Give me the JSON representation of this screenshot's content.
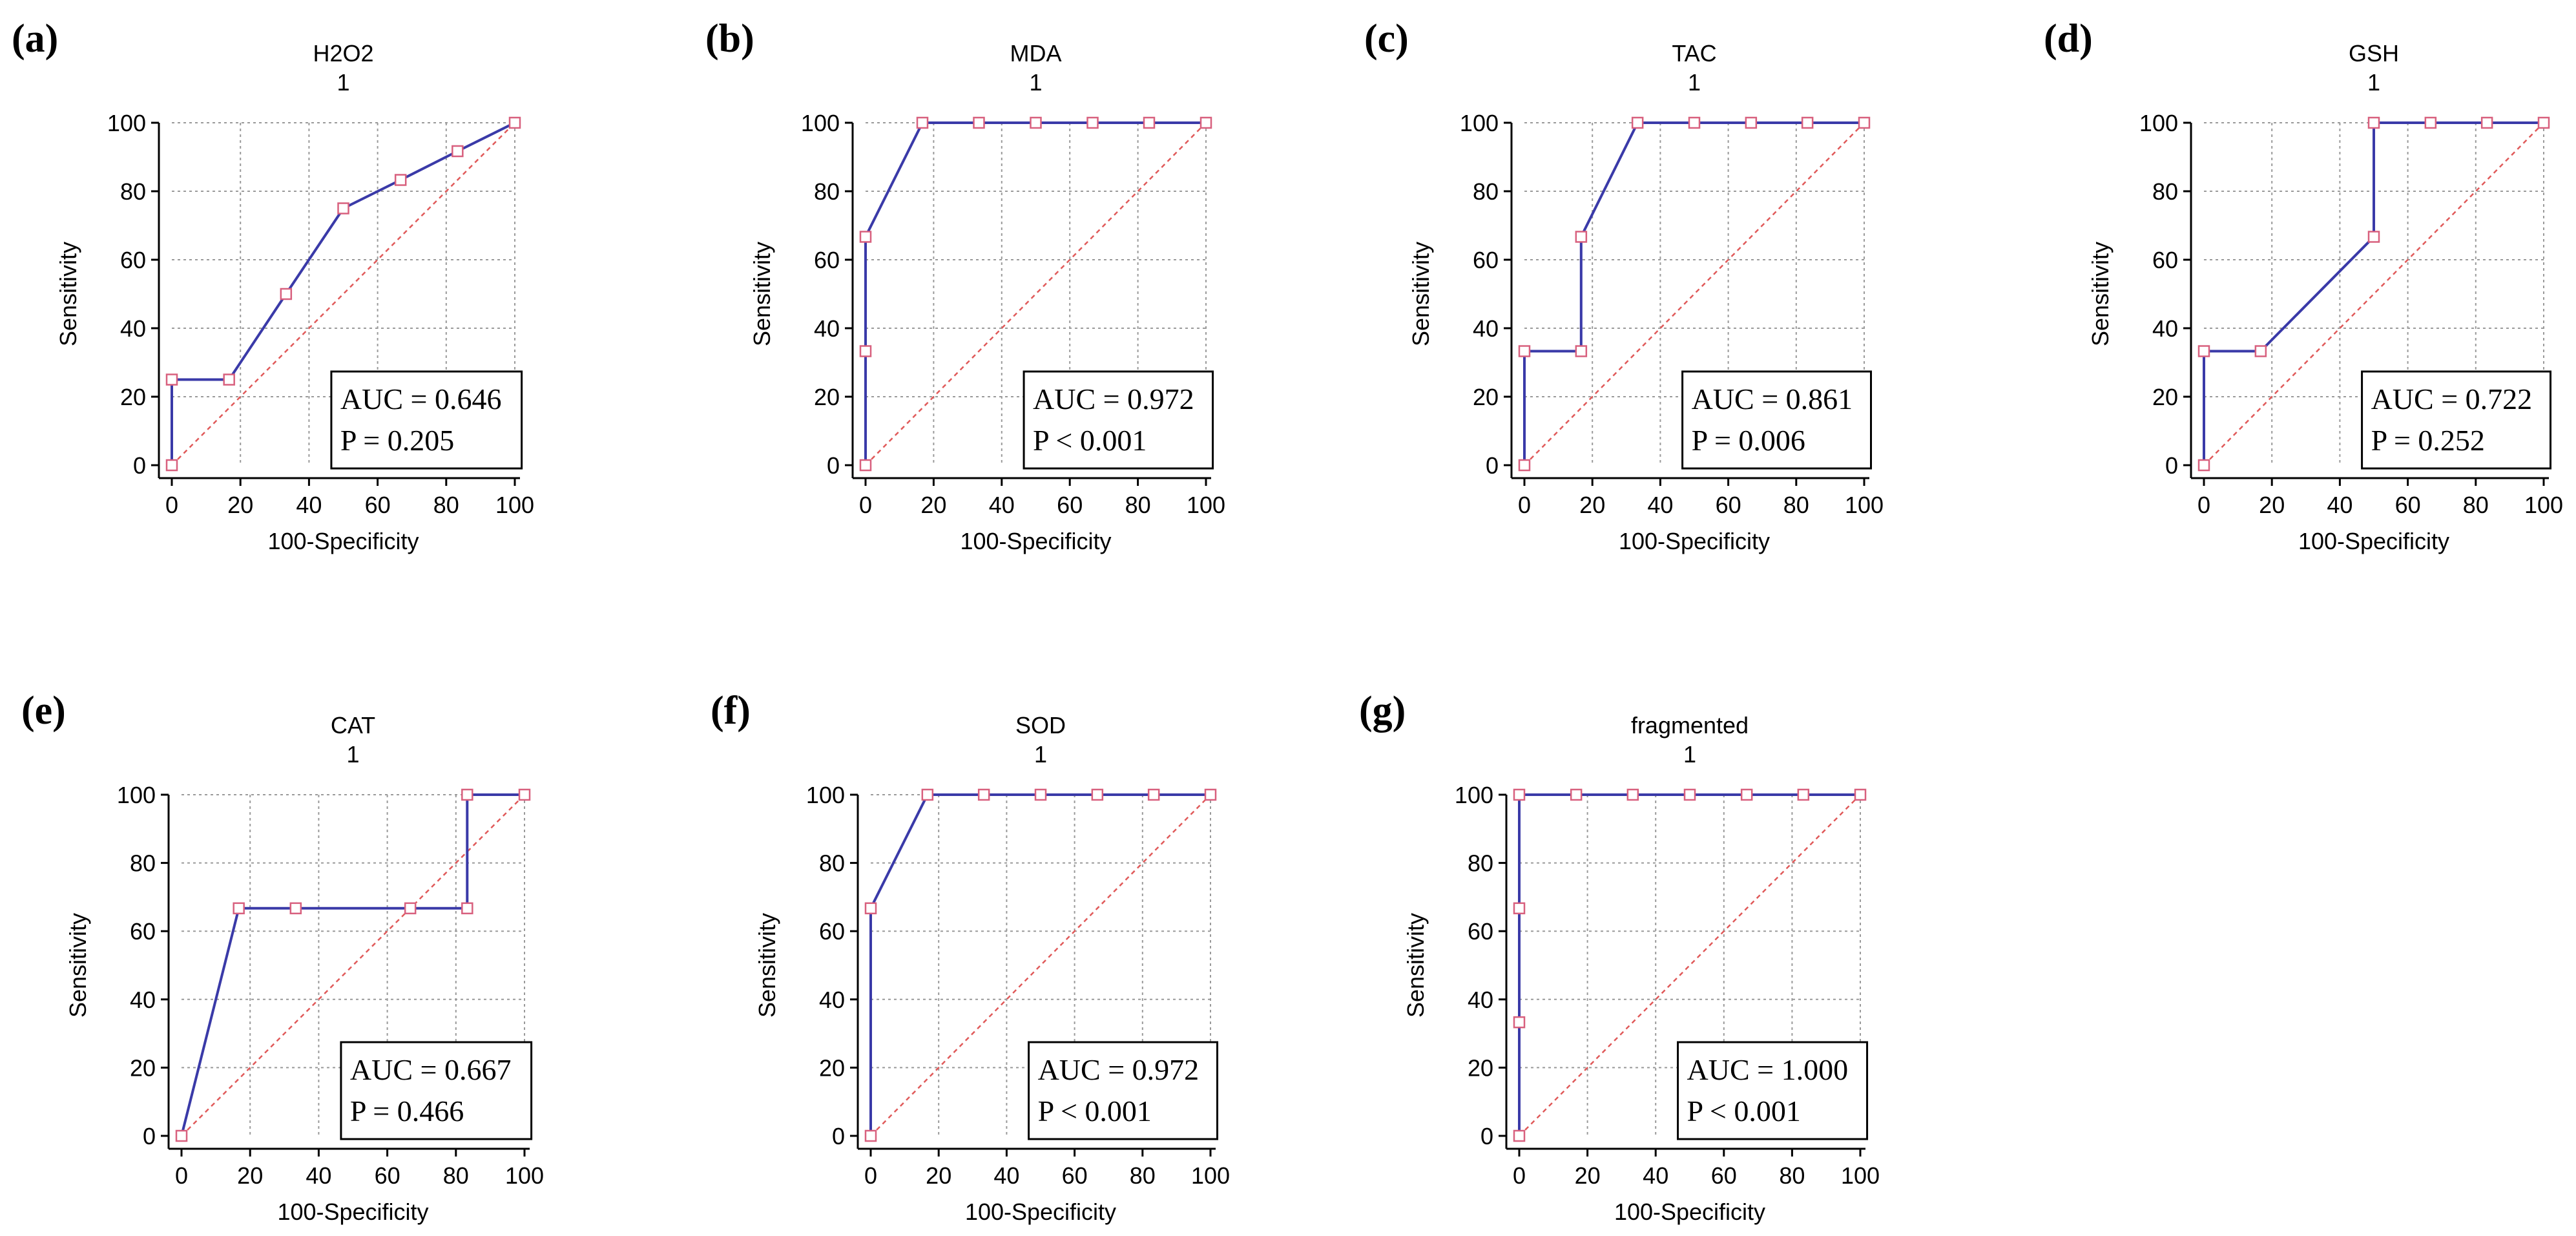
{
  "figure": {
    "colors": {
      "curve": "#3a3aa8",
      "marker": "#d8607e",
      "diagonal": "#e05a5a",
      "grid": "#9a9a9a",
      "axis": "#000000",
      "text": "#000000"
    }
  },
  "chart_data": [
    {
      "type": "line",
      "panel_label": "(a)",
      "title": "H2O2",
      "subtitle": "1",
      "xlabel": "100-Specificity",
      "ylabel": "Sensitivity",
      "xlim": [
        0,
        100
      ],
      "ylim": [
        0,
        100
      ],
      "xticks": [
        "0",
        "20",
        "40",
        "60",
        "80",
        "100"
      ],
      "yticks": [
        "0",
        "20",
        "40",
        "60",
        "80",
        "100"
      ],
      "grid": true,
      "x": [
        0,
        0,
        16.7,
        33.3,
        50,
        66.7,
        83.3,
        100
      ],
      "y": [
        0,
        25,
        25,
        50,
        75,
        83.3,
        91.7,
        100
      ],
      "auc_label": "AUC = 0.646",
      "p_label": "P = 0.205"
    },
    {
      "type": "line",
      "panel_label": "(b)",
      "title": "MDA",
      "subtitle": "1",
      "xlabel": "100-Specificity",
      "ylabel": "Sensitivity",
      "xlim": [
        0,
        100
      ],
      "ylim": [
        0,
        100
      ],
      "xticks": [
        "0",
        "20",
        "40",
        "60",
        "80",
        "100"
      ],
      "yticks": [
        "0",
        "20",
        "40",
        "60",
        "80",
        "100"
      ],
      "grid": true,
      "x": [
        0,
        0,
        0,
        16.7,
        33.3,
        50,
        66.7,
        83.3,
        100
      ],
      "y": [
        0,
        33.3,
        66.7,
        100,
        100,
        100,
        100,
        100,
        100
      ],
      "auc_label": "AUC = 0.972",
      "p_label": "P < 0.001"
    },
    {
      "type": "line",
      "panel_label": "(c)",
      "title": "TAC",
      "subtitle": "1",
      "xlabel": "100-Specificity",
      "ylabel": "Sensitivity",
      "xlim": [
        0,
        100
      ],
      "ylim": [
        0,
        100
      ],
      "xticks": [
        "0",
        "20",
        "40",
        "60",
        "80",
        "100"
      ],
      "yticks": [
        "0",
        "20",
        "40",
        "60",
        "80",
        "100"
      ],
      "grid": true,
      "x": [
        0,
        0,
        16.7,
        16.7,
        33.3,
        50,
        66.7,
        83.3,
        100
      ],
      "y": [
        0,
        33.3,
        33.3,
        66.7,
        100,
        100,
        100,
        100,
        100
      ],
      "auc_label": "AUC = 0.861",
      "p_label": "P = 0.006"
    },
    {
      "type": "line",
      "panel_label": "(d)",
      "title": "GSH",
      "subtitle": "1",
      "xlabel": "100-Specificity",
      "ylabel": "Sensitivity",
      "xlim": [
        0,
        100
      ],
      "ylim": [
        0,
        100
      ],
      "xticks": [
        "0",
        "20",
        "40",
        "60",
        "80",
        "100"
      ],
      "yticks": [
        "0",
        "20",
        "40",
        "60",
        "80",
        "100"
      ],
      "grid": true,
      "x": [
        0,
        0,
        16.7,
        50,
        50,
        66.7,
        83.3,
        100
      ],
      "y": [
        0,
        33.3,
        33.3,
        66.7,
        100,
        100,
        100,
        100
      ],
      "auc_label": "AUC = 0.722",
      "p_label": "P = 0.252"
    },
    {
      "type": "line",
      "panel_label": "(e)",
      "title": "CAT",
      "subtitle": "1",
      "xlabel": "100-Specificity",
      "ylabel": "Sensitivity",
      "xlim": [
        0,
        100
      ],
      "ylim": [
        0,
        100
      ],
      "xticks": [
        "0",
        "20",
        "40",
        "60",
        "80",
        "100"
      ],
      "yticks": [
        "0",
        "20",
        "40",
        "60",
        "80",
        "100"
      ],
      "grid": true,
      "x": [
        0,
        16.7,
        33.3,
        66.7,
        83.3,
        83.3,
        100
      ],
      "y": [
        0,
        66.7,
        66.7,
        66.7,
        66.7,
        100,
        100
      ],
      "auc_label": "AUC = 0.667",
      "p_label": "P = 0.466"
    },
    {
      "type": "line",
      "panel_label": "(f)",
      "title": "SOD",
      "subtitle": "1",
      "xlabel": "100-Specificity",
      "ylabel": "Sensitivity",
      "xlim": [
        0,
        100
      ],
      "ylim": [
        0,
        100
      ],
      "xticks": [
        "0",
        "20",
        "40",
        "60",
        "80",
        "100"
      ],
      "yticks": [
        "0",
        "20",
        "40",
        "60",
        "80",
        "100"
      ],
      "grid": true,
      "x": [
        0,
        0,
        16.7,
        33.3,
        50,
        66.7,
        83.3,
        100
      ],
      "y": [
        0,
        66.7,
        100,
        100,
        100,
        100,
        100,
        100
      ],
      "auc_label": "AUC = 0.972",
      "p_label": "P < 0.001"
    },
    {
      "type": "line",
      "panel_label": "(g)",
      "title": "fragmented",
      "subtitle": "1",
      "xlabel": "100-Specificity",
      "ylabel": "Sensitivity",
      "xlim": [
        0,
        100
      ],
      "ylim": [
        0,
        100
      ],
      "xticks": [
        "0",
        "20",
        "40",
        "60",
        "80",
        "100"
      ],
      "yticks": [
        "0",
        "20",
        "40",
        "60",
        "80",
        "100"
      ],
      "grid": true,
      "x": [
        0,
        0,
        0,
        0,
        16.7,
        33.3,
        50,
        66.7,
        83.3,
        100
      ],
      "y": [
        0,
        33.3,
        66.7,
        100,
        100,
        100,
        100,
        100,
        100,
        100
      ],
      "auc_label": "AUC = 1.000",
      "p_label": "P < 0.001"
    }
  ]
}
